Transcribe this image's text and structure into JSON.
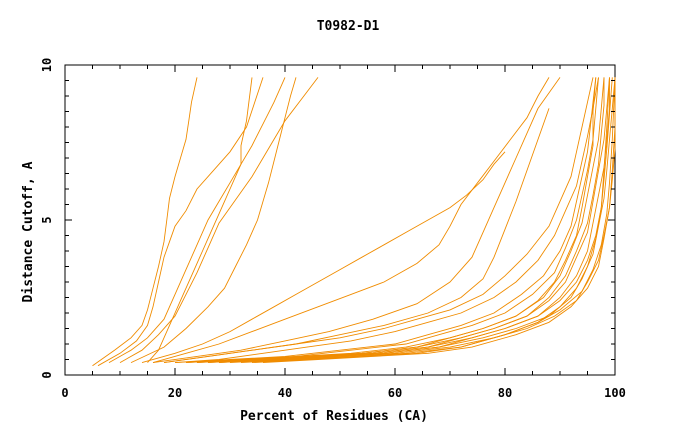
{
  "chart_data": {
    "type": "line",
    "title": "T0982-D1",
    "xlabel": "Percent of Residues (CA)",
    "ylabel": "Distance Cutoff, A",
    "xlim": [
      0,
      100
    ],
    "ylim": [
      0,
      10
    ],
    "x_ticks": [
      0,
      20,
      40,
      60,
      80,
      100
    ],
    "y_ticks": [
      0,
      5,
      10
    ],
    "grid": false,
    "line_color": "#f08c00",
    "series": [
      {
        "x": [
          5,
          9,
          12,
          14,
          15,
          16,
          17,
          18,
          18.5,
          19,
          20,
          21,
          22,
          22.5,
          23,
          24
        ],
        "y": [
          0.3,
          0.8,
          1.2,
          1.6,
          2.1,
          2.8,
          3.5,
          4.3,
          5.0,
          5.7,
          6.4,
          7.0,
          7.6,
          8.2,
          8.8,
          9.6
        ]
      },
      {
        "x": [
          6,
          10,
          13,
          15,
          16,
          17,
          18,
          19,
          20,
          22,
          24,
          27,
          30,
          33,
          36
        ],
        "y": [
          0.3,
          0.7,
          1.1,
          1.6,
          2.2,
          3.0,
          3.8,
          4.3,
          4.8,
          5.3,
          6.0,
          6.6,
          7.2,
          8.0,
          9.6
        ]
      },
      {
        "x": [
          8,
          12,
          15,
          18,
          20,
          22,
          24,
          26,
          28,
          30,
          32,
          34,
          36,
          38,
          40
        ],
        "y": [
          0.4,
          0.8,
          1.2,
          1.8,
          2.6,
          3.4,
          4.2,
          5.0,
          5.6,
          6.2,
          6.8,
          7.4,
          8.1,
          8.8,
          9.6
        ]
      },
      {
        "x": [
          10,
          14,
          17,
          20,
          22,
          24,
          26,
          28,
          30,
          32,
          34,
          36,
          38,
          40,
          43,
          46
        ],
        "y": [
          0.4,
          0.8,
          1.3,
          1.9,
          2.6,
          3.3,
          4.1,
          4.9,
          5.4,
          5.9,
          6.4,
          7.0,
          7.6,
          8.2,
          8.9,
          9.6
        ]
      },
      {
        "x": [
          12,
          18,
          22,
          26,
          29,
          31,
          33,
          35,
          36,
          37,
          38,
          39,
          40,
          41,
          42
        ],
        "y": [
          0.4,
          0.9,
          1.5,
          2.2,
          2.8,
          3.5,
          4.2,
          5.0,
          5.6,
          6.2,
          6.9,
          7.6,
          8.3,
          9.0,
          9.6
        ]
      },
      {
        "x": [
          14,
          20,
          25,
          30,
          34,
          38,
          42,
          46,
          50,
          54,
          58,
          62,
          66,
          70,
          73,
          76,
          78,
          80
        ],
        "y": [
          0.4,
          0.7,
          1.0,
          1.4,
          1.8,
          2.2,
          2.6,
          3.0,
          3.4,
          3.8,
          4.2,
          4.6,
          5.0,
          5.4,
          5.8,
          6.3,
          6.8,
          7.2
        ]
      },
      {
        "x": [
          16,
          22,
          28,
          34,
          40,
          46,
          52,
          58,
          64,
          68,
          70,
          72,
          75,
          78,
          81,
          84,
          86,
          88
        ],
        "y": [
          0.4,
          0.7,
          1.0,
          1.4,
          1.8,
          2.2,
          2.6,
          3.0,
          3.6,
          4.2,
          4.8,
          5.5,
          6.2,
          6.9,
          7.6,
          8.3,
          9.0,
          9.6
        ]
      },
      {
        "x": [
          16,
          24,
          32,
          40,
          48,
          56,
          64,
          70,
          74,
          76,
          78,
          80,
          82,
          84,
          86,
          88,
          90
        ],
        "y": [
          0.4,
          0.6,
          0.8,
          1.1,
          1.4,
          1.8,
          2.3,
          3.0,
          3.8,
          4.6,
          5.4,
          6.2,
          7.0,
          7.8,
          8.6,
          9.1,
          9.6
        ]
      },
      {
        "x": [
          18,
          26,
          34,
          42,
          50,
          58,
          66,
          72,
          76,
          78,
          80,
          82,
          84,
          86,
          88
        ],
        "y": [
          0.4,
          0.6,
          0.8,
          1.0,
          1.3,
          1.6,
          2.0,
          2.5,
          3.1,
          3.8,
          4.7,
          5.6,
          6.6,
          7.6,
          8.6
        ]
      },
      {
        "x": [
          18,
          26,
          34,
          42,
          50,
          58,
          64,
          70,
          76,
          80,
          84,
          88,
          90,
          92,
          93,
          94,
          95,
          96
        ],
        "y": [
          0.4,
          0.6,
          0.8,
          1.0,
          1.2,
          1.5,
          1.8,
          2.1,
          2.6,
          3.2,
          3.9,
          4.8,
          5.6,
          6.4,
          7.2,
          8.0,
          8.8,
          9.6
        ]
      },
      {
        "x": [
          20,
          28,
          36,
          44,
          52,
          60,
          66,
          72,
          78,
          82,
          86,
          89,
          91,
          93,
          94,
          95,
          96,
          97
        ],
        "y": [
          0.4,
          0.5,
          0.7,
          0.9,
          1.1,
          1.4,
          1.7,
          2.0,
          2.5,
          3.0,
          3.7,
          4.5,
          5.3,
          6.1,
          6.9,
          7.7,
          8.6,
          9.6
        ]
      },
      {
        "x": [
          20,
          30,
          40,
          50,
          60,
          66,
          72,
          78,
          83,
          87,
          90,
          92,
          93,
          94,
          95,
          95.5,
          96,
          96.5
        ],
        "y": [
          0.4,
          0.5,
          0.6,
          0.8,
          1.0,
          1.3,
          1.6,
          2.0,
          2.6,
          3.2,
          4.0,
          4.8,
          5.6,
          6.4,
          7.2,
          8.0,
          8.8,
          9.6
        ]
      },
      {
        "x": [
          22,
          32,
          42,
          52,
          62,
          68,
          74,
          80,
          85,
          89,
          91,
          93,
          94,
          95,
          96,
          96.5,
          97
        ],
        "y": [
          0.4,
          0.5,
          0.6,
          0.8,
          1.0,
          1.3,
          1.6,
          2.0,
          2.6,
          3.3,
          4.1,
          5.0,
          5.8,
          6.6,
          7.6,
          8.6,
          9.6
        ]
      },
      {
        "x": [
          22,
          32,
          42,
          52,
          62,
          70,
          76,
          82,
          87,
          90,
          92,
          94,
          95,
          96,
          97,
          97.5,
          98
        ],
        "y": [
          0.4,
          0.5,
          0.6,
          0.7,
          0.9,
          1.2,
          1.5,
          1.9,
          2.5,
          3.2,
          4.0,
          4.9,
          5.8,
          6.7,
          7.6,
          8.6,
          9.6
        ]
      },
      {
        "x": [
          24,
          34,
          44,
          54,
          64,
          70,
          76,
          82,
          86,
          89,
          91,
          93,
          94,
          95,
          96,
          96,
          96.5
        ],
        "y": [
          0.4,
          0.5,
          0.6,
          0.7,
          0.9,
          1.2,
          1.5,
          1.9,
          2.4,
          3.0,
          3.7,
          4.5,
          5.4,
          6.4,
          7.4,
          8.5,
          9.6
        ]
      },
      {
        "x": [
          24,
          34,
          44,
          54,
          64,
          72,
          78,
          84,
          88,
          91,
          93,
          95,
          96,
          97,
          97.5,
          98,
          98
        ],
        "y": [
          0.4,
          0.5,
          0.6,
          0.7,
          0.9,
          1.2,
          1.5,
          1.9,
          2.5,
          3.2,
          4.0,
          4.9,
          5.8,
          6.8,
          7.8,
          8.7,
          9.6
        ]
      },
      {
        "x": [
          26,
          36,
          46,
          56,
          66,
          72,
          78,
          84,
          88,
          91,
          93,
          95,
          96,
          97,
          98,
          98.5,
          99
        ],
        "y": [
          0.4,
          0.5,
          0.6,
          0.7,
          0.9,
          1.2,
          1.5,
          1.9,
          2.4,
          3.0,
          3.8,
          4.6,
          5.6,
          6.6,
          7.6,
          8.6,
          9.6
        ]
      },
      {
        "x": [
          26,
          36,
          46,
          56,
          66,
          74,
          80,
          86,
          90,
          93,
          95,
          96,
          97,
          98,
          98.5,
          99,
          99
        ],
        "y": [
          0.4,
          0.5,
          0.6,
          0.7,
          0.9,
          1.2,
          1.5,
          1.9,
          2.5,
          3.2,
          4.0,
          4.9,
          5.8,
          6.7,
          7.6,
          8.6,
          9.6
        ]
      },
      {
        "x": [
          28,
          38,
          48,
          58,
          68,
          74,
          80,
          86,
          90,
          93,
          95,
          96.5,
          97.5,
          98,
          98.5,
          99,
          99.5
        ],
        "y": [
          0.4,
          0.5,
          0.6,
          0.7,
          0.9,
          1.2,
          1.5,
          1.9,
          2.4,
          3.0,
          3.7,
          4.5,
          5.4,
          6.3,
          7.3,
          8.4,
          9.6
        ]
      },
      {
        "x": [
          28,
          38,
          48,
          58,
          68,
          76,
          82,
          88,
          92,
          94,
          96,
          97,
          98,
          98.5,
          99,
          99.5,
          100
        ],
        "y": [
          0.4,
          0.5,
          0.6,
          0.7,
          0.9,
          1.2,
          1.5,
          1.9,
          2.5,
          3.1,
          3.9,
          4.8,
          5.7,
          6.6,
          7.6,
          8.6,
          9.6
        ]
      },
      {
        "x": [
          30,
          40,
          50,
          60,
          70,
          78,
          84,
          89,
          93,
          95,
          97,
          98,
          99,
          99.5,
          100,
          100,
          100
        ],
        "y": [
          0.4,
          0.5,
          0.6,
          0.7,
          0.9,
          1.2,
          1.5,
          1.9,
          2.4,
          3.0,
          3.7,
          4.5,
          5.4,
          6.3,
          7.3,
          8.4,
          9.6
        ]
      },
      {
        "x": [
          32,
          42,
          52,
          62,
          72,
          80,
          86,
          90,
          94,
          96,
          97.5,
          98.5,
          99,
          99.5,
          100
        ],
        "y": [
          0.4,
          0.5,
          0.6,
          0.7,
          0.9,
          1.3,
          1.7,
          2.1,
          2.7,
          3.4,
          4.2,
          5.2,
          6.2,
          7.6,
          9.6
        ]
      },
      {
        "x": [
          34,
          44,
          54,
          64,
          72,
          80,
          86,
          90,
          93,
          95,
          96.5,
          97.5,
          98,
          98.5,
          99
        ],
        "y": [
          0.4,
          0.5,
          0.6,
          0.7,
          0.9,
          1.3,
          1.7,
          2.2,
          2.8,
          3.5,
          4.4,
          5.4,
          6.6,
          8.0,
          9.6
        ]
      },
      {
        "x": [
          36,
          46,
          56,
          66,
          74,
          82,
          88,
          92,
          95,
          97,
          98,
          99,
          99.5,
          100,
          100
        ],
        "y": [
          0.4,
          0.5,
          0.6,
          0.7,
          0.9,
          1.3,
          1.7,
          2.2,
          2.8,
          3.5,
          4.4,
          5.4,
          6.6,
          8.0,
          9.6
        ]
      },
      {
        "x": [
          15,
          17,
          18,
          19,
          20,
          21,
          22,
          23,
          24,
          25,
          26,
          27,
          28,
          29,
          30,
          31,
          32,
          32,
          33,
          34
        ],
        "y": [
          0.4,
          0.8,
          1.2,
          1.6,
          2.0,
          2.4,
          2.8,
          3.2,
          3.6,
          4.0,
          4.4,
          4.8,
          5.2,
          5.6,
          6.0,
          6.4,
          6.8,
          7.4,
          8.2,
          9.6
        ]
      }
    ]
  }
}
